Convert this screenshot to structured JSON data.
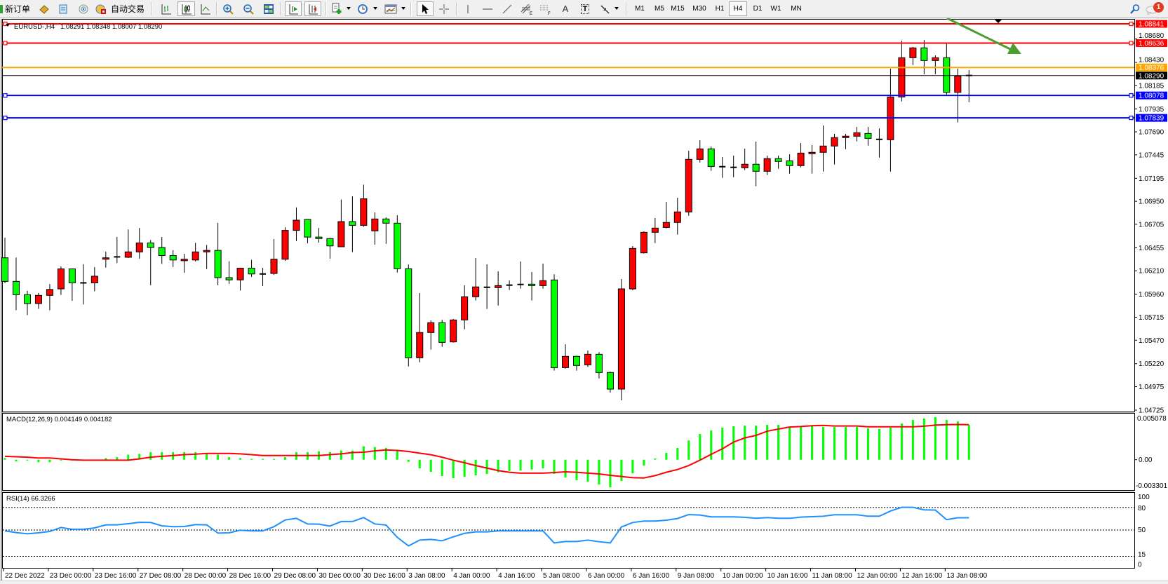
{
  "toolbar": {
    "new_order": "新订单",
    "auto_trading": "自动交易",
    "text_tool": "A",
    "label_tool": "T",
    "timeframes": [
      "M1",
      "M5",
      "M15",
      "M30",
      "H1",
      "H4",
      "D1",
      "W1",
      "MN"
    ],
    "active_timeframe": "H4",
    "notification_count": "1",
    "icons": [
      "new-order-icon",
      "gold-book-icon",
      "document-icon",
      "radio-signal-icon",
      "autotrading-icon",
      "bar-chart-icon",
      "candlestick-icon",
      "line-chart-icon",
      "zoom-in-icon",
      "zoom-out-icon",
      "tile-windows-icon",
      "auto-scroll-icon",
      "chart-shift-icon",
      "indicators-icon",
      "periods-icon",
      "templates-icon",
      "cursor-icon",
      "crosshair-icon",
      "vertical-line-icon",
      "horizontal-line-icon",
      "trendline-icon",
      "fibo-channel-icon",
      "fibo-retracement-icon",
      "text-icon",
      "label-icon",
      "arrows-icon",
      "search-icon",
      "chat-icon"
    ]
  },
  "chart": {
    "title": "EURUSD-,H4",
    "ohlc": "1.08291 1.08348 1.08007 1.08290",
    "macd_label": "MACD(12,26,9) 0.004149 0.004182",
    "rsi_label": "RSI(14) 66.3266",
    "macd_axis": {
      "top": "0.005078",
      "zero": "0.00",
      "bottom": "-0.003301"
    },
    "rsi_axis": [
      "100",
      "80",
      "50",
      "15",
      "0"
    ]
  },
  "chart_data": {
    "type": "candlestick",
    "symbol": "EURUSD-",
    "timeframe": "H4",
    "colors": {
      "bull_body": "#ff0000",
      "bear_body": "#00ff00",
      "wick": "#000000",
      "macd_histogram": "#00ff00",
      "macd_signal": "#ff0000",
      "rsi": "#1e90ff"
    },
    "price_ticks": [
      "1.08680",
      "1.08430",
      "1.08185",
      "1.07935",
      "1.07690",
      "1.07445",
      "1.07195",
      "1.06950",
      "1.06705",
      "1.06455",
      "1.06210",
      "1.05960",
      "1.05715",
      "1.05470",
      "1.05220",
      "1.04975",
      "1.04725"
    ],
    "time_labels": [
      "22 Dec 2022",
      "23 Dec 00:00",
      "23 Dec 16:00",
      "27 Dec 08:00",
      "28 Dec 00:00",
      "28 Dec 16:00",
      "29 Dec 08:00",
      "30 Dec 00:00",
      "30 Dec 16:00",
      "3 Jan 08:00",
      "4 Jan 00:00",
      "4 Jan 16:00",
      "5 Jan 08:00",
      "6 Jan 00:00",
      "6 Jan 16:00",
      "9 Jan 08:00",
      "10 Jan 00:00",
      "10 Jan 16:00",
      "11 Jan 08:00",
      "12 Jan 00:00",
      "12 Jan 16:00",
      "13 Jan 08:00"
    ],
    "horizontal_lines": [
      {
        "price": 1.08841,
        "label": "1.08841",
        "color": "#ff0000",
        "selected": true
      },
      {
        "price": 1.08636,
        "label": "1.08636",
        "color": "#ff0000",
        "selected": true
      },
      {
        "price": 1.08376,
        "label": "1.08376",
        "color": "#ffa500",
        "selected": false
      },
      {
        "price": 1.0829,
        "label": "1.08290",
        "color": "#000000",
        "selected": false
      },
      {
        "price": 1.08078,
        "label": "1.08078",
        "color": "#0000ff",
        "selected": true
      },
      {
        "price": 1.07839,
        "label": "1.07839",
        "color": "#0000ff",
        "selected": true
      }
    ],
    "arrow_annotation": {
      "color": "#4c9e2e",
      "direction": "down-right"
    },
    "candle_fields": [
      "open",
      "high",
      "low",
      "close"
    ],
    "candles": [
      [
        1.06348,
        1.06563,
        1.06077,
        1.06097
      ],
      [
        1.06097,
        1.06351,
        1.0579,
        1.05955
      ],
      [
        1.05955,
        1.05997,
        1.05738,
        1.05861
      ],
      [
        1.05861,
        1.05974,
        1.05804,
        1.05948
      ],
      [
        1.05948,
        1.06068,
        1.0579,
        1.06011
      ],
      [
        1.06017,
        1.06256,
        1.05953,
        1.0623
      ],
      [
        1.0623,
        1.06235,
        1.0589,
        1.06081
      ],
      [
        1.06081,
        1.0628,
        1.05851,
        1.06079
      ],
      [
        1.06081,
        1.06249,
        1.05992,
        1.06152
      ],
      [
        1.06333,
        1.06414,
        1.06244,
        1.06348
      ],
      [
        1.06356,
        1.06571,
        1.06291,
        1.06358
      ],
      [
        1.06354,
        1.0665,
        1.06346,
        1.06411
      ],
      [
        1.06411,
        1.06666,
        1.06339,
        1.06506
      ],
      [
        1.06506,
        1.06537,
        1.06055,
        1.06458
      ],
      [
        1.06458,
        1.0657,
        1.06283,
        1.06372
      ],
      [
        1.06372,
        1.0643,
        1.06251,
        1.06325
      ],
      [
        1.06317,
        1.06391,
        1.06189,
        1.06333
      ],
      [
        1.06325,
        1.06508,
        1.06309,
        1.06411
      ],
      [
        1.06411,
        1.06485,
        1.06228,
        1.06427
      ],
      [
        1.06427,
        1.0672,
        1.06055,
        1.06137
      ],
      [
        1.06137,
        1.06312,
        1.0607,
        1.06113
      ],
      [
        1.06113,
        1.06238,
        1.06,
        1.06238
      ],
      [
        1.06238,
        1.06327,
        1.06144,
        1.06176
      ],
      [
        1.06176,
        1.06241,
        1.06047,
        1.06174
      ],
      [
        1.06181,
        1.06548,
        1.06165,
        1.06333
      ],
      [
        1.06333,
        1.06673,
        1.06315,
        1.0664
      ],
      [
        1.0664,
        1.06885,
        1.06527,
        1.06749
      ],
      [
        1.06757,
        1.0676,
        1.06503,
        1.06569
      ],
      [
        1.06569,
        1.06666,
        1.0651,
        1.06553
      ],
      [
        1.06553,
        1.0656,
        1.06339,
        1.06475
      ],
      [
        1.06466,
        1.06969,
        1.06462,
        1.06734
      ],
      [
        1.06734,
        1.07003,
        1.06409,
        1.06694
      ],
      [
        1.06694,
        1.07127,
        1.06678,
        1.06977
      ],
      [
        1.06635,
        1.06832,
        1.06488,
        1.06762
      ],
      [
        1.06762,
        1.06779,
        1.06498,
        1.06717
      ],
      [
        1.06717,
        1.06802,
        1.06191,
        1.06232
      ],
      [
        1.06232,
        1.06277,
        1.0519,
        1.05283
      ],
      [
        1.05283,
        1.05973,
        1.05235,
        1.05552
      ],
      [
        1.05552,
        1.05681,
        1.0537,
        1.05657
      ],
      [
        1.05657,
        1.05689,
        1.054,
        1.05447
      ],
      [
        1.05452,
        1.05696,
        1.05444,
        1.05686
      ],
      [
        1.05686,
        1.06055,
        1.05586,
        1.05933
      ],
      [
        1.05933,
        1.06346,
        1.05893,
        1.06038
      ],
      [
        1.06032,
        1.06279,
        1.05803,
        1.06034
      ],
      [
        1.0603,
        1.06204,
        1.0584,
        1.06052
      ],
      [
        1.06055,
        1.06107,
        1.06005,
        1.06057
      ],
      [
        1.06062,
        1.06309,
        1.0602,
        1.06064
      ],
      [
        1.06067,
        1.06197,
        1.05893,
        1.06052
      ],
      [
        1.06052,
        1.06286,
        1.0602,
        1.06105
      ],
      [
        1.06112,
        1.06172,
        1.05146,
        1.05178
      ],
      [
        1.05178,
        1.05427,
        1.05168,
        1.05298
      ],
      [
        1.05298,
        1.05305,
        1.05146,
        1.05201
      ],
      [
        1.05208,
        1.0536,
        1.05186,
        1.0532
      ],
      [
        1.0532,
        1.05343,
        1.05063,
        1.05126
      ],
      [
        1.05126,
        1.05136,
        1.04912,
        1.04949
      ],
      [
        1.04949,
        1.06122,
        1.0483,
        1.06017
      ],
      [
        1.06017,
        1.06473,
        1.06002,
        1.06448
      ],
      [
        1.06401,
        1.0663,
        1.06393,
        1.0662
      ],
      [
        1.0662,
        1.06772,
        1.06505,
        1.06665
      ],
      [
        1.06672,
        1.06944,
        1.06662,
        1.06725
      ],
      [
        1.06725,
        1.06988,
        1.06595,
        1.06837
      ],
      [
        1.06837,
        1.07489,
        1.06796,
        1.07397
      ],
      [
        1.07397,
        1.07601,
        1.07364,
        1.07509
      ],
      [
        1.07509,
        1.07534,
        1.07275,
        1.07322
      ],
      [
        1.07319,
        1.07422,
        1.072,
        1.07317
      ],
      [
        1.07312,
        1.07437,
        1.07207,
        1.0731
      ],
      [
        1.07307,
        1.07511,
        1.07282,
        1.07345
      ],
      [
        1.07345,
        1.07586,
        1.0711,
        1.0727
      ],
      [
        1.0727,
        1.07437,
        1.0723,
        1.07405
      ],
      [
        1.07405,
        1.07437,
        1.07297,
        1.07375
      ],
      [
        1.07382,
        1.07452,
        1.07245,
        1.0733
      ],
      [
        1.0733,
        1.07571,
        1.07312,
        1.07464
      ],
      [
        1.07457,
        1.07549,
        1.07245,
        1.07472
      ],
      [
        1.07472,
        1.07758,
        1.07267,
        1.07539
      ],
      [
        1.07539,
        1.07668,
        1.07342,
        1.07629
      ],
      [
        1.07629,
        1.07668,
        1.07506,
        1.07644
      ],
      [
        1.07644,
        1.07743,
        1.07588,
        1.07681
      ],
      [
        1.07673,
        1.07743,
        1.07543,
        1.07621
      ],
      [
        1.0761,
        1.07726,
        1.07416,
        1.07608
      ],
      [
        1.07606,
        1.08363,
        1.07267,
        1.08062
      ],
      [
        1.08062,
        1.08662,
        1.08014,
        1.0848
      ],
      [
        1.0848,
        1.08595,
        1.08403,
        1.08585
      ],
      [
        1.08585,
        1.08669,
        1.08305,
        1.0845
      ],
      [
        1.0845,
        1.08505,
        1.08305,
        1.0848
      ],
      [
        1.0848,
        1.08627,
        1.08081,
        1.08111
      ],
      [
        1.08111,
        1.08363,
        1.0779,
        1.08286
      ],
      [
        1.08291,
        1.08348,
        1.08007,
        1.0829
      ]
    ],
    "macd": {
      "params": [
        12,
        26,
        9
      ],
      "ylim": [
        -0.003301,
        0.005078
      ],
      "histogram": [
        0.0002,
        -0.0002,
        -0.0001,
        -0.0003,
        -0.0003,
        -0.0001,
        -0.0001,
        0,
        0,
        0.0002,
        0.0003,
        0.0006,
        0.0007,
        0.0009,
        0.0009,
        0.0009,
        0.0009,
        0.0009,
        0.0007,
        0.0006,
        0.0003,
        0.0002,
        0.0001,
        0.0001,
        0.0001,
        0.0003,
        0.0009,
        0.0009,
        0.001,
        0.0009,
        0.0011,
        0.0011,
        0.0016,
        0.0015,
        0.0014,
        0.00106,
        -0.00025,
        -0.00103,
        -0.00145,
        -0.00195,
        -0.0022,
        -0.00204,
        -0.00187,
        -0.0017,
        -0.0015,
        -0.00134,
        -0.00128,
        -0.00117,
        -0.00103,
        -0.0017,
        -0.00212,
        -0.00245,
        -0.00262,
        -0.00296,
        -0.0033,
        -0.00254,
        -0.00162,
        -0.0007,
        0.00014,
        0.00081,
        0.0014,
        0.0023,
        0.00307,
        0.00349,
        0.00382,
        0.00399,
        0.00407,
        0.00407,
        0.00416,
        0.00416,
        0.00393,
        0.00393,
        0.00399,
        0.0039,
        0.0039,
        0.0039,
        0.0039,
        0.00374,
        0.00366,
        0.00382,
        0.00432,
        0.00474,
        0.00491,
        0.00508,
        0.00474,
        0.00457,
        0.004149
      ],
      "signal": [
        0.0004,
        0.00035,
        0.0003,
        0.0002,
        0.0002,
        0.0001,
        0,
        -6e-05,
        -6e-05,
        -6e-05,
        -6e-05,
        -6e-05,
        0.0001,
        0.0003,
        0.0004,
        0.0005,
        0.0006,
        0.00066,
        0.00075,
        0.00075,
        0.00075,
        0.0007,
        0.0006,
        0.0005,
        0.0005,
        0.0005,
        0.0005,
        0.0005,
        0.0005,
        0.0006,
        0.0007,
        0.00085,
        0.0009,
        0.00105,
        0.00117,
        0.0011,
        0.00098,
        0.00078,
        0.00059,
        0.0003,
        -6e-05,
        -0.00036,
        -0.0007,
        -0.001,
        -0.0013,
        -0.0015,
        -0.0016,
        -0.0016,
        -0.0016,
        -0.00153,
        -0.00145,
        -0.0015,
        -0.0016,
        -0.0017,
        -0.00187,
        -0.002,
        -0.00215,
        -0.00218,
        -0.0019,
        -0.0015,
        -0.00117,
        -0.0007,
        -6e-05,
        0.00064,
        0.0013,
        0.0021,
        0.0026,
        0.0029,
        0.0034,
        0.00366,
        0.0039,
        0.00396,
        0.00405,
        0.0041,
        0.00402,
        0.00402,
        0.00402,
        0.00393,
        0.00393,
        0.00393,
        0.00393,
        0.00393,
        0.004,
        0.00413,
        0.00418,
        0.0042,
        0.004182
      ]
    },
    "rsi": {
      "period": 14,
      "ylim": [
        0,
        100
      ],
      "levels": [
        80,
        50,
        15
      ],
      "values": [
        48.8,
        46.6,
        45,
        46.3,
        48.1,
        53.4,
        51,
        51,
        52.8,
        56.9,
        56.9,
        58.4,
        60.3,
        60,
        55.6,
        54.4,
        54.7,
        57.2,
        56.9,
        45.9,
        46.3,
        49.7,
        48.8,
        48.8,
        54.4,
        63.4,
        65.6,
        58.1,
        57.8,
        55.3,
        61.3,
        61.3,
        66.6,
        58.1,
        56.6,
        40.3,
        28.8,
        36.6,
        37.5,
        35.6,
        40.9,
        45.6,
        47.5,
        47.5,
        48.8,
        48.8,
        48.8,
        48.8,
        48.8,
        32.8,
        34.7,
        34.7,
        36.6,
        34.4,
        32.8,
        54.1,
        60,
        61.9,
        61.9,
        63.1,
        65.3,
        70.6,
        70,
        67.5,
        67.5,
        67.5,
        66.9,
        65.6,
        66.6,
        65.6,
        65.6,
        67.2,
        67.8,
        68.4,
        70.3,
        70.3,
        70.3,
        68.4,
        68.4,
        75.3,
        80.3,
        80.3,
        76.9,
        76.6,
        63.8,
        66.3,
        66.3266
      ]
    }
  }
}
